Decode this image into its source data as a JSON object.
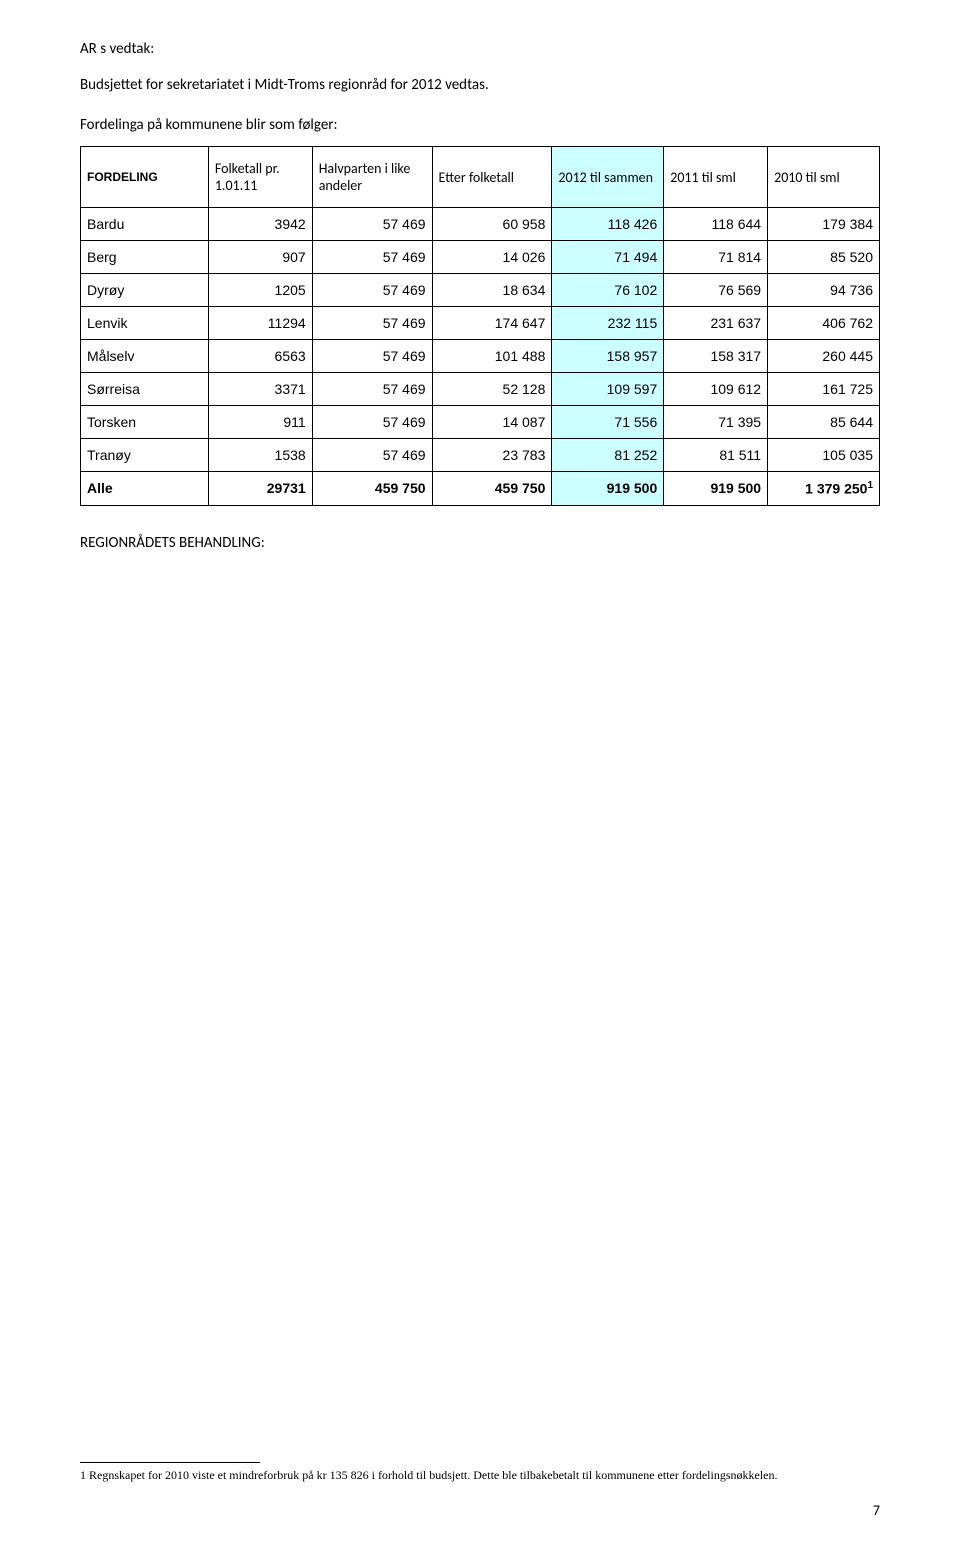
{
  "heading": "AR s vedtak:",
  "subheading": "Budsjettet for sekretariatet i Midt-Troms regionråd for 2012 vedtas.",
  "fordel_intro": "Fordelinga på kommunene blir som følger:",
  "table": {
    "header": {
      "fordeling": "FORDELING",
      "folketall": "Folketall pr. 1.01.11",
      "halvparten": "Halvparten i like andeler",
      "etter": "Etter folketall",
      "c2012": "2012 til sammen",
      "c2011": "2011 til sml",
      "c2010": "2010 til sml"
    },
    "rows": [
      {
        "name": "Bardu",
        "folke": "3942",
        "halv": "57 469",
        "etter": "60 958",
        "v2012": "118 426",
        "v2011": "118 644",
        "v2010": "179 384"
      },
      {
        "name": "Berg",
        "folke": "907",
        "halv": "57 469",
        "etter": "14 026",
        "v2012": "71 494",
        "v2011": "71 814",
        "v2010": "85 520"
      },
      {
        "name": "Dyrøy",
        "folke": "1205",
        "halv": "57 469",
        "etter": "18 634",
        "v2012": "76 102",
        "v2011": "76 569",
        "v2010": "94 736"
      },
      {
        "name": "Lenvik",
        "folke": "11294",
        "halv": "57 469",
        "etter": "174 647",
        "v2012": "232 115",
        "v2011": "231 637",
        "v2010": "406 762"
      },
      {
        "name": "Målselv",
        "folke": "6563",
        "halv": "57 469",
        "etter": "101 488",
        "v2012": "158 957",
        "v2011": "158 317",
        "v2010": "260 445"
      },
      {
        "name": "Sørreisa",
        "folke": "3371",
        "halv": "57 469",
        "etter": "52 128",
        "v2012": "109 597",
        "v2011": "109 612",
        "v2010": "161 725"
      },
      {
        "name": "Torsken",
        "folke": "911",
        "halv": "57 469",
        "etter": "14 087",
        "v2012": "71 556",
        "v2011": "71 395",
        "v2010": "85 644"
      },
      {
        "name": "Tranøy",
        "folke": "1538",
        "halv": "57 469",
        "etter": "23 783",
        "v2012": "81 252",
        "v2011": "81 511",
        "v2010": "105 035"
      }
    ],
    "totals": {
      "name": "Alle",
      "folke": "29731",
      "halv": "459 750",
      "etter": "459 750",
      "v2012": "919 500",
      "v2011": "919 500",
      "v2010_prefix": "1 379 250",
      "v2010_sup": "1"
    }
  },
  "section_label": "REGIONRÅDETS BEHANDLING:",
  "footnote_marker": "1",
  "footnote_text": " Regnskapet for 2010 viste et mindreforbruk på kr 135 826 i forhold til budsjett. Dette ble tilbakebetalt til kommunene etter fordelingsnøkkelen.",
  "page_number": "7",
  "colors": {
    "highlight": "#ccffff",
    "border": "#000000",
    "text": "#000000",
    "bg": "#ffffff"
  }
}
